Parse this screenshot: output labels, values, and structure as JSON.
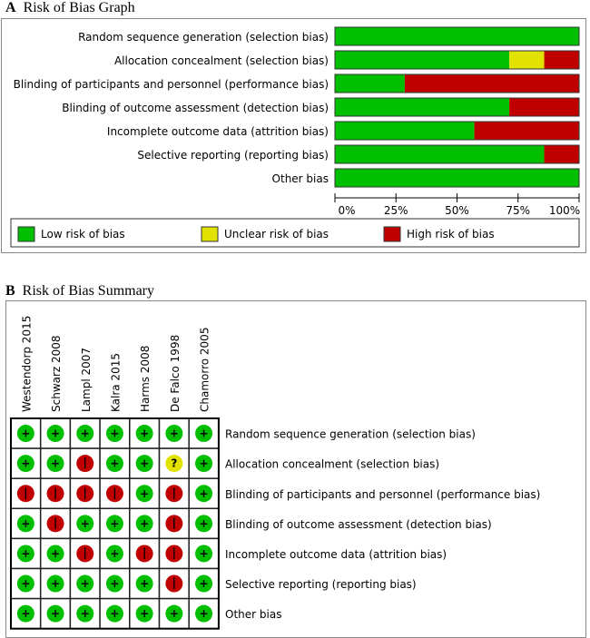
{
  "panel_a": {
    "letter": "A",
    "title": "Risk of Bias Graph"
  },
  "panel_b": {
    "letter": "B",
    "title": "Risk of Bias Summary"
  },
  "colors": {
    "low": "#00bf00",
    "unclear": "#e2e200",
    "high": "#c00000"
  },
  "chart_data": [
    {
      "type": "bar",
      "orientation": "horizontal",
      "stacked": true,
      "title": "Risk of Bias Graph",
      "categories": [
        "Random sequence generation (selection bias)",
        "Allocation concealment (selection bias)",
        "Blinding of participants and personnel (performance bias)",
        "Blinding of outcome assessment (detection bias)",
        "Incomplete outcome data (attrition bias)",
        "Selective reporting (reporting bias)",
        "Other bias"
      ],
      "series": [
        {
          "name": "Low risk of bias",
          "key": "low",
          "values": [
            100,
            71.4,
            28.6,
            71.4,
            57.1,
            85.7,
            100
          ]
        },
        {
          "name": "Unclear risk of bias",
          "key": "unclear",
          "values": [
            0,
            14.3,
            0,
            0,
            0,
            0,
            0
          ]
        },
        {
          "name": "High risk of bias",
          "key": "high",
          "values": [
            0,
            14.3,
            71.4,
            28.6,
            42.9,
            14.3,
            0
          ]
        }
      ],
      "xlim": [
        0,
        100
      ],
      "xticks": [
        "0%",
        "25%",
        "50%",
        "75%",
        "100%"
      ],
      "legend": "bottom"
    },
    {
      "type": "table",
      "title": "Risk of Bias Summary",
      "studies": [
        "Westendorp 2015",
        "Schwarz 2008",
        "Lampl 2007",
        "Kalra 2015",
        "Harms 2008",
        "De Falco 1998",
        "Chamorro 2005"
      ],
      "domains": [
        "Random sequence generation (selection bias)",
        "Allocation concealment (selection bias)",
        "Blinding of participants and personnel (performance bias)",
        "Blinding of outcome assessment (detection bias)",
        "Incomplete outcome data (attrition bias)",
        "Selective reporting (reporting bias)",
        "Other bias"
      ],
      "judgements": [
        [
          "+",
          "+",
          "+",
          "+",
          "+",
          "+",
          "+"
        ],
        [
          "+",
          "+",
          "-",
          "+",
          "+",
          "?",
          "+"
        ],
        [
          "-",
          "-",
          "-",
          "-",
          "+",
          "-",
          "+"
        ],
        [
          "+",
          "-",
          "+",
          "+",
          "+",
          "-",
          "+"
        ],
        [
          "+",
          "+",
          "-",
          "+",
          "-",
          "-",
          "+"
        ],
        [
          "+",
          "+",
          "+",
          "+",
          "+",
          "-",
          "+"
        ],
        [
          "+",
          "+",
          "+",
          "+",
          "+",
          "+",
          "+"
        ]
      ]
    }
  ]
}
